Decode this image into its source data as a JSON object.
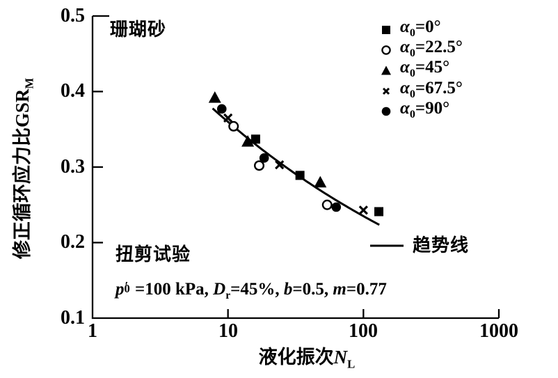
{
  "annotations": {
    "material": "珊瑚砂",
    "test_type": "扭剪试验"
  },
  "conditions": {
    "p": "p",
    "p_prime": "′",
    "p_sub": "0",
    "eq1": "=100 kPa, ",
    "D": "D",
    "D_sub": "r",
    "eq2": "=45%, ",
    "b": "b",
    "eq3": "=0.5, ",
    "m": "m",
    "eq4": "=0.77"
  },
  "labels": {
    "ylabel_main": "修正循环应力比GSR",
    "ylabel_sub": "M",
    "xlabel_main": "液化振次",
    "xlabel_var": "N",
    "xlabel_sub": "L"
  },
  "legend": {
    "items": [
      {
        "alpha": "α",
        "sub": "0",
        "rest": "=0°",
        "marker": "filled-square"
      },
      {
        "alpha": "α",
        "sub": "0",
        "rest": "=22.5°",
        "marker": "open-circle"
      },
      {
        "alpha": "α",
        "sub": "0",
        "rest": "=45°",
        "marker": "filled-triangle"
      },
      {
        "alpha": "α",
        "sub": "0",
        "rest": "=67.5°",
        "marker": "x-cross"
      },
      {
        "alpha": "α",
        "sub": "0",
        "rest": "=90°",
        "marker": "filled-circle"
      }
    ],
    "trend_label": "趋势线"
  },
  "chart_data": {
    "type": "scatter",
    "title": "珊瑚砂",
    "xlabel": "液化振次N_L",
    "ylabel": "修正循环应力比GSR_M",
    "x_scale": "log",
    "xlim": [
      1,
      1000
    ],
    "ylim": [
      0.1,
      0.5
    ],
    "xticks": [
      "1",
      "10",
      "100",
      "1000"
    ],
    "yticks": [
      "0.5",
      "0.4",
      "0.3",
      "0.2",
      "0.1"
    ],
    "inner_xtick_values": [
      10,
      100
    ],
    "inner_ytick_values": [
      0.4,
      0.3,
      0.2
    ],
    "series": [
      {
        "name": "α0=0°",
        "marker": "filled-square",
        "points": [
          [
            16,
            0.337
          ],
          [
            34,
            0.289
          ],
          [
            130,
            0.241
          ]
        ]
      },
      {
        "name": "α0=22.5°",
        "marker": "open-circle",
        "points": [
          [
            11,
            0.354
          ],
          [
            17,
            0.302
          ],
          [
            54,
            0.25
          ]
        ]
      },
      {
        "name": "α0=45°",
        "marker": "filled-triangle",
        "points": [
          [
            8,
            0.392
          ],
          [
            14,
            0.334
          ],
          [
            48,
            0.28
          ]
        ]
      },
      {
        "name": "α0=67.5°",
        "marker": "x-cross",
        "points": [
          [
            10,
            0.365
          ],
          [
            24,
            0.303
          ],
          [
            100,
            0.243
          ]
        ]
      },
      {
        "name": "α0=90°",
        "marker": "filled-circle",
        "points": [
          [
            9,
            0.377
          ],
          [
            18.5,
            0.312
          ],
          [
            63,
            0.247
          ]
        ]
      }
    ],
    "trend": {
      "name": "趋势线",
      "model": "power",
      "coefficient": 0.551,
      "exponent": -0.185,
      "n_range": [
        7.7,
        131
      ]
    },
    "legend_position": "upper right",
    "grid": false,
    "colors": {
      "foreground": "#000000",
      "background": "#ffffff"
    }
  }
}
